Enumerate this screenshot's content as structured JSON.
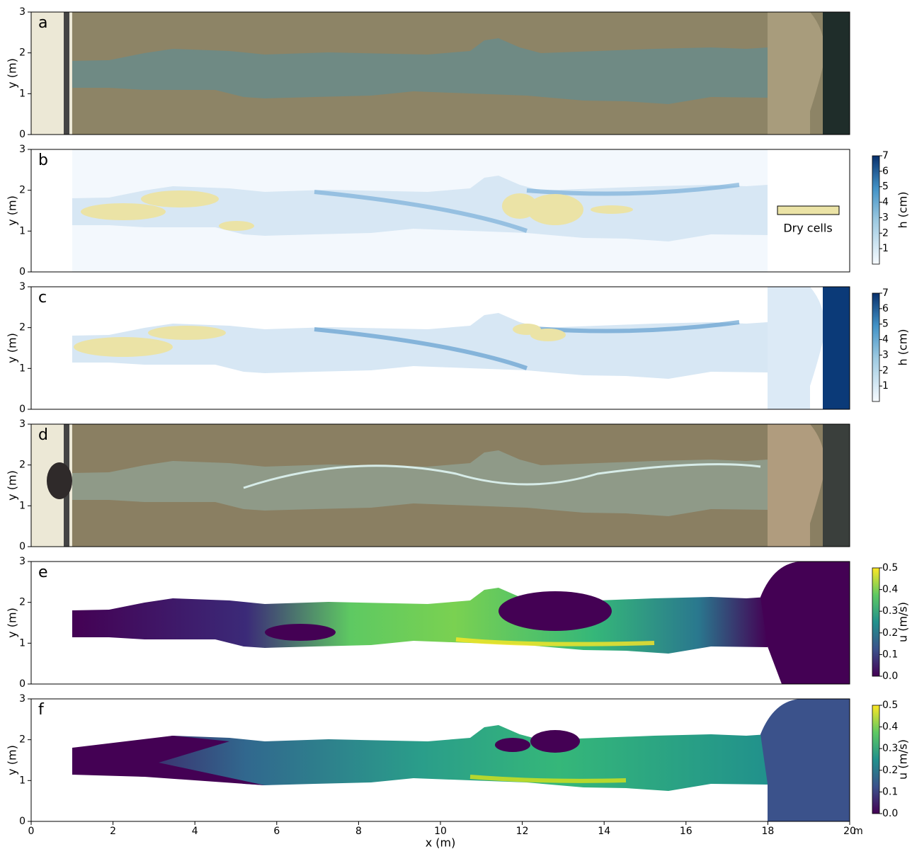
{
  "chart_data": [
    {
      "type": "image",
      "label": "a",
      "ylabel": "y (m)",
      "xlim": [
        0,
        20
      ],
      "ylim": [
        0,
        3
      ],
      "yticks": [
        0,
        1,
        2,
        3
      ]
    },
    {
      "type": "image",
      "label": "b",
      "ylabel": "y (m)",
      "xlim": [
        0,
        20
      ],
      "ylim": [
        0,
        3
      ],
      "yticks": [
        0,
        1,
        2,
        3
      ],
      "legend": {
        "name": "Dry cells",
        "color": "#ebe3a6"
      },
      "colorbar": {
        "label": "h (cm)",
        "lim": [
          0,
          7
        ],
        "ticks": [
          1,
          2,
          3,
          4,
          5,
          6,
          7
        ],
        "colormap": "Blues"
      }
    },
    {
      "type": "image",
      "label": "c",
      "ylabel": "y (m)",
      "xlim": [
        0,
        20
      ],
      "ylim": [
        0,
        3
      ],
      "yticks": [
        0,
        1,
        2,
        3
      ],
      "colorbar": {
        "label": "h (cm)",
        "lim": [
          0,
          7
        ],
        "ticks": [
          1,
          2,
          3,
          4,
          5,
          6,
          7
        ],
        "colormap": "Blues"
      }
    },
    {
      "type": "image",
      "label": "d",
      "ylabel": "y (m)",
      "xlim": [
        0,
        20
      ],
      "ylim": [
        0,
        3
      ],
      "yticks": [
        0,
        1,
        2,
        3
      ]
    },
    {
      "type": "image",
      "label": "e",
      "ylabel": "y (m)",
      "xlim": [
        0,
        20
      ],
      "ylim": [
        0,
        3
      ],
      "yticks": [
        0,
        1,
        2,
        3
      ],
      "colorbar": {
        "label": "u (m/s)",
        "lim": [
          0,
          0.5
        ],
        "ticks": [
          {
            "value": 0,
            "label": "0.0"
          },
          {
            "value": 0.1,
            "label": "0.1"
          },
          {
            "value": 0.2,
            "label": "0.2"
          },
          {
            "value": 0.3,
            "label": "0.3"
          },
          {
            "value": 0.4,
            "label": "0.4"
          },
          {
            "value": 0.5,
            "label": "0.5"
          }
        ],
        "colormap": "viridis"
      }
    },
    {
      "type": "image",
      "label": "f",
      "ylabel": "y (m)",
      "xlabel": "x (m)",
      "xunit": "m",
      "xlim": [
        0,
        20
      ],
      "ylim": [
        0,
        3
      ],
      "yticks": [
        0,
        1,
        2,
        3
      ],
      "xticks": [
        0,
        2,
        4,
        6,
        8,
        10,
        12,
        14,
        16,
        18,
        20
      ],
      "colorbar": {
        "label": "u (m/s)",
        "lim": [
          0,
          0.5
        ],
        "ticks": [
          {
            "value": 0,
            "label": "0.0"
          },
          {
            "value": 0.1,
            "label": "0.1"
          },
          {
            "value": 0.2,
            "label": "0.2"
          },
          {
            "value": 0.3,
            "label": "0.3"
          },
          {
            "value": 0.4,
            "label": "0.4"
          },
          {
            "value": 0.5,
            "label": "0.5"
          }
        ],
        "colormap": "viridis"
      }
    }
  ]
}
